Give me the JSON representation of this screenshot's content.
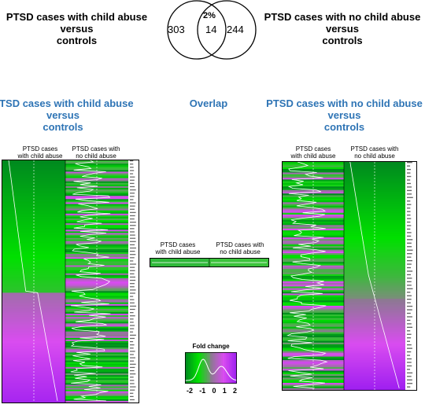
{
  "top": {
    "left_label": [
      "PTSD cases with child abuse",
      "versus",
      "controls"
    ],
    "right_label": [
      "PTSD cases with no child abuse",
      "versus",
      "controls"
    ]
  },
  "venn": {
    "left_only": "303",
    "overlap": "14",
    "right_only": "244",
    "overlap_pct": "2%"
  },
  "sections": {
    "left_title": [
      "PTSD cases with child abuse",
      "versus",
      "controls"
    ],
    "middle_title": "Overlap",
    "right_title": [
      "PTSD cases with no child abuse",
      "versus",
      "controls"
    ]
  },
  "columns": {
    "child_abuse": [
      "PTSD cases",
      "with child abuse"
    ],
    "no_child_abuse": [
      "PTSD cases with",
      "no child abuse"
    ]
  },
  "legend": {
    "title": "Fold change",
    "ticks": [
      "-2",
      "-1",
      "0",
      "1",
      "2"
    ]
  },
  "colors": {
    "green": "#00e000",
    "dark_green": "#008a1f",
    "magenta": "#d94cf0",
    "purple": "#a020f0",
    "blue_title": "#2e74b5"
  }
}
